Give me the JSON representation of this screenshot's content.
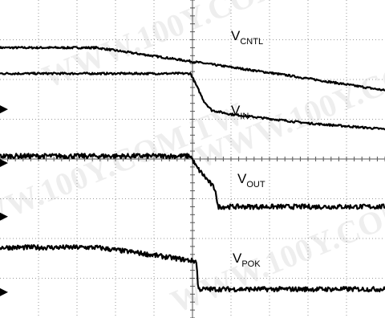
{
  "chart_data": {
    "type": "line",
    "title": "",
    "xlabel": "",
    "ylabel": "",
    "grid": true,
    "watermark": "WWW.100Y.COM.TW",
    "x_range": [
      0,
      10
    ],
    "series": [
      {
        "name": "VCNTL",
        "label_main": "V",
        "label_sub": "CNTL",
        "noise": 0.05,
        "points": [
          [
            0,
            5.6
          ],
          [
            2.5,
            5.6
          ],
          [
            5,
            4.9
          ],
          [
            7.5,
            4.2
          ],
          [
            10,
            3.45
          ]
        ]
      },
      {
        "name": "VIN",
        "label_main": "V",
        "label_sub": "IN",
        "noise": 0.05,
        "points": [
          [
            0,
            4.3
          ],
          [
            4.95,
            4.3
          ],
          [
            5.1,
            3.7
          ],
          [
            5.3,
            2.9
          ],
          [
            5.5,
            2.45
          ],
          [
            6,
            2.25
          ],
          [
            8,
            1.8
          ],
          [
            10,
            1.5
          ]
        ]
      },
      {
        "name": "VOUT",
        "label_main": "V",
        "label_sub": "OUT",
        "noise": 0.12,
        "points": [
          [
            0,
            0.15
          ],
          [
            4.95,
            0.15
          ],
          [
            5.1,
            -0.4
          ],
          [
            5.3,
            -0.85
          ],
          [
            5.6,
            -1.55
          ],
          [
            5.65,
            -2.4
          ],
          [
            10,
            -2.4
          ]
        ]
      },
      {
        "name": "VPOK",
        "label_main": "V",
        "label_sub": "POK",
        "noise": 0.12,
        "points": [
          [
            0,
            -4.45
          ],
          [
            2.5,
            -4.45
          ],
          [
            3.5,
            -4.7
          ],
          [
            5.1,
            -5.15
          ],
          [
            5.15,
            -6.55
          ],
          [
            10,
            -6.55
          ]
        ]
      }
    ]
  }
}
